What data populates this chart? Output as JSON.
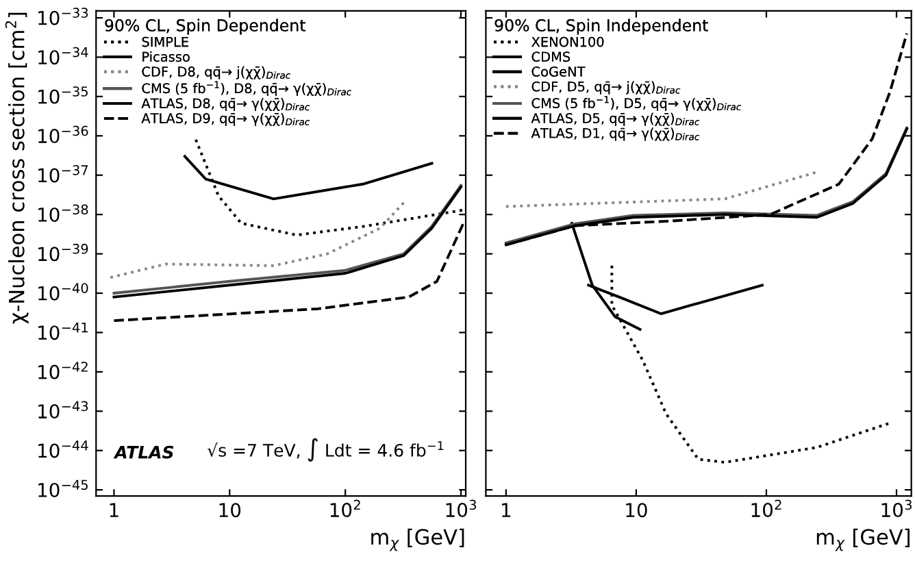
{
  "chart_data": [
    {
      "type": "line",
      "xlabel": "m$_{χ}$ [GeV]",
      "ylabel": "χ-Nucleon cross section [cm$^{2}$]",
      "log": "xy",
      "legend": "top left",
      "legend_title": "90% CL, Spin Dependent",
      "grid": false,
      "xlim": [
        0.7,
        1100
      ],
      "ylim": [
        7e-46,
        1.5e-33
      ],
      "xticks": [
        {
          "value": 1,
          "label": "1"
        },
        {
          "value": 10,
          "label": "10"
        },
        {
          "value": 100,
          "label": "10$^{2}$"
        },
        {
          "value": 1000,
          "label": "10$^{3}$"
        }
      ],
      "yticks": [
        {
          "value": 1e-45,
          "label": "10$^{−45}$"
        },
        {
          "value": 1e-44,
          "label": "10$^{−44}$"
        },
        {
          "value": 1e-43,
          "label": "10$^{−43}$"
        },
        {
          "value": 1e-42,
          "label": "10$^{−42}$"
        },
        {
          "value": 1e-41,
          "label": "10$^{−41}$"
        },
        {
          "value": 1e-40,
          "label": "10$^{−40}$"
        },
        {
          "value": 1e-39,
          "label": "10$^{−39}$"
        },
        {
          "value": 1e-38,
          "label": "10$^{−38}$"
        },
        {
          "value": 1e-37,
          "label": "10$^{−37}$"
        },
        {
          "value": 1e-36,
          "label": "10$^{−36}$"
        },
        {
          "value": 1e-35,
          "label": "10$^{−35}$"
        },
        {
          "value": 1e-34,
          "label": "10$^{−34}$"
        },
        {
          "value": 1e-33,
          "label": "10$^{−33}$"
        }
      ],
      "annotations": [
        "ATLAS",
        "√s =7 TeV, ∫ Ldt = 4.6 fb$^{−1}$"
      ],
      "series": [
        {
          "name": "SIMPLE",
          "color": "#000000",
          "line_style": "dotted",
          "x": [
            5.1,
            8,
            12.6,
            38,
            145,
            1050
          ],
          "values": [
            8e-37,
            3e-38,
            6e-39,
            3e-39,
            5e-39,
            1.3e-38
          ]
        },
        {
          "name": "Picasso",
          "color": "#000000",
          "line_style": "solid",
          "x": [
            4.1,
            6.2,
            24,
            145,
            560
          ],
          "values": [
            3e-37,
            8e-38,
            2.5e-38,
            6e-38,
            2e-37
          ]
        },
        {
          "name": "CDF, D8, qq̄→ j(χχ̄)$_{Dirac}$",
          "color": "#888888",
          "line_style": "dotted",
          "x": [
            0.93,
            2.8,
            24,
            70,
            200,
            330
          ],
          "values": [
            2.5e-40,
            5.5e-40,
            5e-40,
            1e-39,
            4.5e-39,
            2.2e-38
          ]
        },
        {
          "name": "CMS (5 fb$^{−1}$), D8, qq̄→ γ(χχ̄)$_{Dirac}$",
          "color": "#555555",
          "line_style": "solid",
          "x": [
            1,
            10,
            100,
            320,
            560,
            1000
          ],
          "values": [
            1e-40,
            2e-40,
            3.8e-40,
            1e-39,
            5e-39,
            5.5e-38
          ]
        },
        {
          "name": "ATLAS, D8, qq̄→ γ(χχ̄)$_{Dirac}$",
          "color": "#000000",
          "line_style": "solid",
          "x": [
            1,
            10,
            100,
            320,
            560,
            1000
          ],
          "values": [
            8e-41,
            1.6e-40,
            3.2e-40,
            9e-40,
            4.5e-39,
            5e-38
          ]
        },
        {
          "name": "ATLAS, D9, qq̄→ γ(χχ̄)$_{Dirac}$",
          "color": "#000000",
          "line_style": "dashed",
          "x": [
            1,
            58,
            355,
            620,
            1050
          ],
          "values": [
            2e-41,
            4e-41,
            8e-41,
            2e-40,
            6e-39
          ]
        }
      ]
    },
    {
      "type": "line",
      "xlabel": "m$_{χ}$ [GeV]",
      "log": "xy",
      "legend": "top left",
      "legend_title": "90% CL, Spin Independent",
      "grid": false,
      "tick_labels": "x",
      "xlim": [
        0.7,
        1300
      ],
      "ylim": [
        7e-46,
        1.5e-33
      ],
      "xticks": [
        {
          "value": 1,
          "label": "1"
        },
        {
          "value": 10,
          "label": "10"
        },
        {
          "value": 100,
          "label": "10$^{2}$"
        },
        {
          "value": 1000,
          "label": "10$^{3}$"
        }
      ],
      "yticks": [
        {
          "value": 1e-45,
          "label": null
        },
        {
          "value": 1e-44,
          "label": null
        },
        {
          "value": 1e-43,
          "label": null
        },
        {
          "value": 1e-42,
          "label": null
        },
        {
          "value": 1e-41,
          "label": null
        },
        {
          "value": 1e-40,
          "label": null
        },
        {
          "value": 1e-39,
          "label": null
        },
        {
          "value": 1e-38,
          "label": null
        },
        {
          "value": 1e-37,
          "label": null
        },
        {
          "value": 1e-36,
          "label": null
        },
        {
          "value": 1e-35,
          "label": null
        },
        {
          "value": 1e-34,
          "label": null
        },
        {
          "value": 1e-33,
          "label": null
        }
      ],
      "series": [
        {
          "name": "XENON100",
          "color": "#000000",
          "line_style": "dotted",
          "x": [
            6.5,
            6.5,
            11.2,
            17,
            30,
            48,
            245,
            890
          ],
          "values": [
            5e-40,
            5e-41,
            2e-42,
            8.5e-44,
            6e-45,
            5e-45,
            1.2e-44,
            5e-44
          ]
        },
        {
          "name": "CDMS",
          "color": "#000000",
          "line_style": "solid",
          "x": [
            4.3,
            7.4,
            15.5,
            93
          ],
          "values": [
            1.6e-40,
            8e-41,
            3e-41,
            1.6e-40
          ]
        },
        {
          "name": "CoGeNT",
          "color": "#000000",
          "line_style": "solid",
          "x": [
            3.2,
            4.6,
            6.9,
            10.7
          ],
          "values": [
            6e-39,
            1.6e-40,
            2.5e-41,
            1.2e-41
          ]
        },
        {
          "name": "CDF, D5, qq̄→ j(χχ̄)$_{Dirac}$",
          "color": "#888888",
          "line_style": "dotted",
          "x": [
            1,
            48,
            245
          ],
          "values": [
            1.6e-38,
            2.5e-38,
            1.2e-37
          ]
        },
        {
          "name": "CMS (5 fb$^{−1}$), D5, qq̄→ γ(χχ̄)$_{Dirac}$",
          "color": "#555555",
          "line_style": "solid",
          "x": [
            1,
            3.4,
            9.5,
            48,
            245,
            460,
            830,
            1200
          ],
          "values": [
            1.9e-39,
            5.8e-39,
            9.5e-39,
            1.1e-38,
            9.5e-39,
            2.1e-38,
            1.1e-37,
            1.6e-36
          ]
        },
        {
          "name": "ATLAS, D5, qq̄→ γ(χχ̄)$_{Dirac}$",
          "color": "#000000",
          "line_style": "solid",
          "x": [
            1,
            3.4,
            9.5,
            48,
            245,
            460,
            830,
            1200
          ],
          "values": [
            1.7e-39,
            5.2e-39,
            8.5e-39,
            1e-38,
            8.5e-39,
            1.9e-38,
            1e-37,
            1.5e-36
          ]
        },
        {
          "name": "ATLAS, D1, qq̄→ γ(χχ̄)$_{Dirac}$",
          "color": "#000000",
          "line_style": "dashed",
          "x": [
            1,
            3.4,
            18,
            107,
            360,
            650,
            890,
            1200
          ],
          "values": [
            1.7e-39,
            5.2e-39,
            6.8e-39,
            1e-38,
            5.9e-38,
            8.3e-37,
            1.3e-35,
            4e-34
          ]
        }
      ]
    }
  ]
}
